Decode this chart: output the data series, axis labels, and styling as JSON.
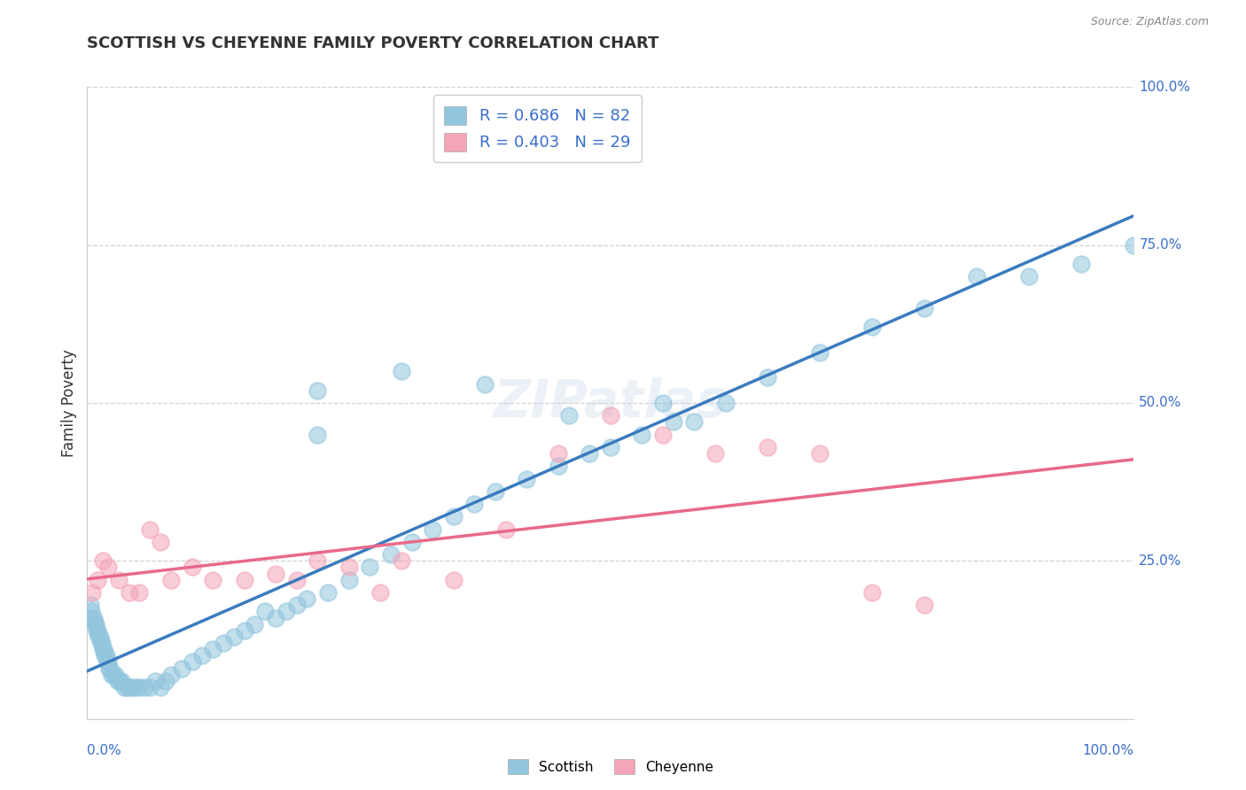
{
  "title": "SCOTTISH VS CHEYENNE FAMILY POVERTY CORRELATION CHART",
  "source": "Source: ZipAtlas.com",
  "ylabel": "Family Poverty",
  "watermark": "ZIPatlas",
  "scottish_color": "#92c5de",
  "cheyenne_color": "#f4a5b8",
  "scottish_line_color": "#3a7bbf",
  "cheyenne_line_color": "#e8698a",
  "legend_text_color": "#3a6ecc",
  "scottish_R": 0.686,
  "scottish_N": 82,
  "cheyenne_R": 0.403,
  "cheyenne_N": 29,
  "background_color": "#ffffff",
  "grid_color": "#cccccc",
  "axis_label_color": "#3a6ecc",
  "title_color": "#333333",
  "scottish_x": [
    0.3,
    0.4,
    0.5,
    0.6,
    0.7,
    0.8,
    0.9,
    1.0,
    1.1,
    1.2,
    1.3,
    1.4,
    1.5,
    1.6,
    1.7,
    1.8,
    1.9,
    2.0,
    2.1,
    2.2,
    2.3,
    2.5,
    2.7,
    2.9,
    3.1,
    3.3,
    3.5,
    3.8,
    4.0,
    4.3,
    4.6,
    5.0,
    5.5,
    6.0,
    6.5,
    7.0,
    7.5,
    8.0,
    9.0,
    10.0,
    11.0,
    12.0,
    13.0,
    14.0,
    15.0,
    16.0,
    17.0,
    18.0,
    19.0,
    20.0,
    21.0,
    22.0,
    23.0,
    25.0,
    27.0,
    29.0,
    31.0,
    33.0,
    35.0,
    37.0,
    39.0,
    42.0,
    45.0,
    48.0,
    50.0,
    53.0,
    56.0,
    58.0,
    61.0,
    65.0,
    70.0,
    75.0,
    80.0,
    85.0,
    90.0,
    95.0,
    100.0,
    22.0,
    30.0,
    38.0,
    46.0,
    55.0
  ],
  "scottish_y": [
    18,
    17,
    16,
    16,
    15,
    15,
    14,
    14,
    13,
    13,
    12,
    12,
    11,
    11,
    10,
    10,
    9,
    9,
    8,
    8,
    7,
    7,
    7,
    6,
    6,
    6,
    5,
    5,
    5,
    5,
    5,
    5,
    5,
    5,
    6,
    5,
    6,
    7,
    8,
    9,
    10,
    11,
    12,
    13,
    14,
    15,
    17,
    16,
    17,
    18,
    19,
    45,
    20,
    22,
    24,
    26,
    28,
    30,
    32,
    34,
    36,
    38,
    40,
    42,
    43,
    45,
    47,
    47,
    50,
    54,
    58,
    62,
    65,
    70,
    70,
    72,
    75,
    52,
    55,
    53,
    48,
    50
  ],
  "cheyenne_x": [
    0.5,
    1.0,
    1.5,
    2.0,
    3.0,
    4.0,
    5.0,
    6.0,
    7.0,
    8.0,
    10.0,
    12.0,
    15.0,
    18.0,
    20.0,
    22.0,
    25.0,
    28.0,
    30.0,
    35.0,
    40.0,
    45.0,
    50.0,
    55.0,
    60.0,
    65.0,
    70.0,
    75.0,
    80.0
  ],
  "cheyenne_y": [
    20,
    22,
    25,
    24,
    22,
    20,
    20,
    30,
    28,
    22,
    24,
    22,
    22,
    23,
    22,
    25,
    24,
    20,
    25,
    22,
    30,
    42,
    48,
    45,
    42,
    43,
    42,
    20,
    18
  ]
}
